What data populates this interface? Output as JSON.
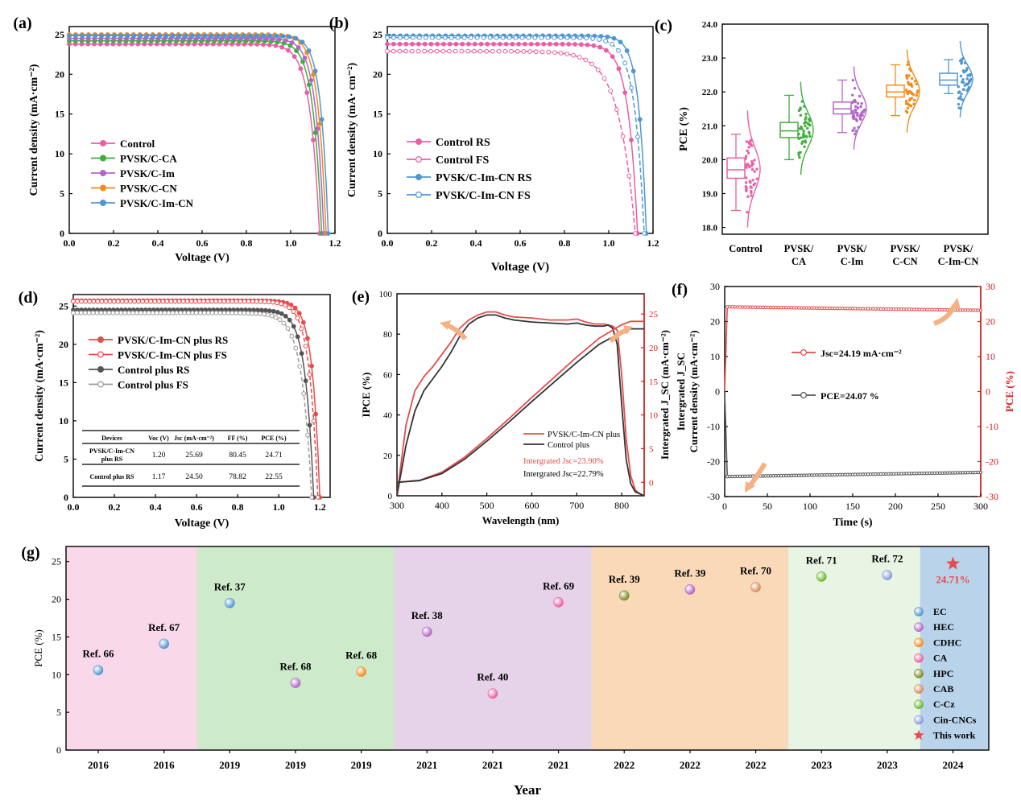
{
  "figure": {
    "panel_letters": [
      "(a)",
      "(b)",
      "(c)",
      "(d)",
      "(e)",
      "(f)",
      "(g)"
    ]
  },
  "colors": {
    "pink": "#ea5fa4",
    "green": "#3fae3f",
    "purple": "#b266c8",
    "orange": "#f08c1e",
    "blue": "#4f97d3",
    "red": "#e64c4c",
    "grey": "#555555",
    "light_grey": "#9a9a9a"
  },
  "chart_data": [
    {
      "id": "a",
      "type": "line",
      "xlabel": "Voltage (V)",
      "ylabel": "Current density (mA·cm⁻²)",
      "xlim": [
        0,
        1.2
      ],
      "ylim": [
        0,
        26
      ],
      "xticks": [
        "0.0",
        "0.2",
        "0.4",
        "0.6",
        "0.8",
        "1.0",
        "1.2"
      ],
      "yticks": [
        "0",
        "5",
        "10",
        "15",
        "20",
        "25"
      ],
      "series": [
        {
          "name": "Control",
          "color": "pink",
          "jsc": 23.8,
          "voc": 1.13,
          "ff": 0.78
        },
        {
          "name": "PVSK/C-CA",
          "color": "green",
          "jsc": 24.2,
          "voc": 1.14,
          "ff": 0.79
        },
        {
          "name": "PVSK/C-Im",
          "color": "purple",
          "jsc": 24.5,
          "voc": 1.15,
          "ff": 0.795
        },
        {
          "name": "PVSK/C-CN",
          "color": "orange",
          "jsc": 25.0,
          "voc": 1.16,
          "ff": 0.8
        },
        {
          "name": "PVSK/C-Im-CN",
          "color": "blue",
          "jsc": 24.85,
          "voc": 1.17,
          "ff": 0.81
        }
      ]
    },
    {
      "id": "b",
      "type": "line",
      "xlabel": "Voltage (V)",
      "ylabel": "Current density (mA· cm⁻²)",
      "xlim": [
        0,
        1.2
      ],
      "ylim": [
        0,
        26
      ],
      "xticks": [
        "0.0",
        "0.2",
        "0.4",
        "0.6",
        "0.8",
        "1.0",
        "1.2"
      ],
      "yticks": [
        "0",
        "5",
        "10",
        "15",
        "20",
        "25"
      ],
      "series": [
        {
          "name": "Control RS",
          "color": "pink",
          "jsc": 23.8,
          "voc": 1.13,
          "ff": 0.78,
          "open": false
        },
        {
          "name": "Control FS",
          "color": "pink",
          "jsc": 22.9,
          "voc": 1.12,
          "ff": 0.73,
          "open": true
        },
        {
          "name": "PVSK/C-Im-CN RS",
          "color": "blue",
          "jsc": 24.85,
          "voc": 1.17,
          "ff": 0.81,
          "open": false
        },
        {
          "name": "PVSK/C-Im-CN FS",
          "color": "blue",
          "jsc": 24.6,
          "voc": 1.16,
          "ff": 0.78,
          "open": true
        }
      ]
    },
    {
      "id": "c",
      "type": "box",
      "ylabel": "PCE (%)",
      "ylim": [
        17.8,
        24.0
      ],
      "yticks": [
        "18.0",
        "19.0",
        "20.0",
        "21.0",
        "22.0",
        "23.0",
        "24.0"
      ],
      "categories": [
        [
          "Control"
        ],
        [
          "PVSK/",
          "CA"
        ],
        [
          "PVSK/",
          "C-Im"
        ],
        [
          "PVSK/",
          "C-CN"
        ],
        [
          "PVSK/",
          "C-Im-CN"
        ]
      ],
      "boxes": [
        {
          "color": "pink",
          "min": 18.5,
          "q1": 19.45,
          "median": 19.7,
          "q3": 20.05,
          "max": 20.75,
          "mean": 19.72,
          "lo": 18.0,
          "hi": 21.45
        },
        {
          "color": "green",
          "min": 20.0,
          "q1": 20.65,
          "median": 20.85,
          "q3": 21.1,
          "max": 21.9,
          "mean": 20.88,
          "lo": 19.55,
          "hi": 22.3
        },
        {
          "color": "purple",
          "min": 20.8,
          "q1": 21.35,
          "median": 21.5,
          "q3": 21.7,
          "max": 22.35,
          "mean": 21.52,
          "lo": 20.3,
          "hi": 22.75
        },
        {
          "color": "orange",
          "min": 21.3,
          "q1": 21.85,
          "median": 22.0,
          "q3": 22.2,
          "max": 22.8,
          "mean": 22.02,
          "lo": 20.8,
          "hi": 23.25
        },
        {
          "color": "blue",
          "min": 21.95,
          "q1": 22.2,
          "median": 22.35,
          "q3": 22.55,
          "max": 22.95,
          "mean": 22.38,
          "lo": 21.25,
          "hi": 23.5
        }
      ]
    },
    {
      "id": "d",
      "type": "line",
      "xlabel": "Voltage (V)",
      "ylabel": "Current density (mA·cm⁻²)",
      "xlim": [
        0,
        1.25
      ],
      "ylim": [
        0,
        26.5
      ],
      "xticks": [
        "0.0",
        "0.2",
        "0.4",
        "0.6",
        "0.8",
        "1.0",
        "1.2"
      ],
      "yticks": [
        "0",
        "5",
        "10",
        "15",
        "20",
        "25"
      ],
      "series": [
        {
          "name": "PVSK/C-Im-CN plus RS",
          "color": "red",
          "jsc": 25.69,
          "voc": 1.2,
          "ff": 0.8045,
          "open": false
        },
        {
          "name": "PVSK/C-Im-CN plus FS",
          "color": "red",
          "jsc": 25.6,
          "voc": 1.19,
          "ff": 0.79,
          "open": true
        },
        {
          "name": "Control plus RS",
          "color": "grey",
          "jsc": 24.5,
          "voc": 1.17,
          "ff": 0.7882,
          "open": false
        },
        {
          "name": "Control plus FS",
          "color": "light_grey",
          "jsc": 24.1,
          "voc": 1.16,
          "ff": 0.77,
          "open": true
        }
      ],
      "table": {
        "headers": [
          "Devices",
          "Voc (V)",
          "Jsc (mA·cm⁻²)",
          "FF (%)",
          "PCE (%)"
        ],
        "rows": [
          [
            [
              "PVSK/C-Im-CN",
              "plus RS"
            ],
            "1.20",
            "25.69",
            "80.45",
            "24.71"
          ],
          [
            [
              "Control plus RS"
            ],
            "1.17",
            "24.50",
            "78.82",
            "22.55"
          ]
        ]
      }
    },
    {
      "id": "e",
      "type": "line",
      "xlabel": "Wavelength (nm)",
      "ylabel": "IPCE (%)",
      "ylabel_right": "Intergrated J_SC (mA·cm⁻²)",
      "xlim": [
        300,
        850
      ],
      "ylim": [
        0,
        100
      ],
      "ylim_right": [
        -2,
        28
      ],
      "xticks": [
        "300",
        "400",
        "500",
        "600",
        "700",
        "800"
      ],
      "yticks": [
        "0",
        "20",
        "40",
        "60",
        "80",
        "100"
      ],
      "yticks_right": [
        "0",
        "5",
        "10",
        "15",
        "20",
        "25"
      ],
      "ipce": [
        {
          "name": "PVSK/C-Im-CN plus",
          "color": "red",
          "x": [
            300,
            320,
            340,
            360,
            380,
            400,
            420,
            440,
            460,
            480,
            500,
            520,
            540,
            560,
            600,
            640,
            680,
            700,
            720,
            740,
            760,
            780,
            790,
            800,
            810,
            820,
            830,
            840,
            850
          ],
          "y": [
            0,
            35,
            52,
            59,
            64,
            70,
            76,
            83,
            87,
            89.5,
            91,
            91,
            89.5,
            88.5,
            88,
            87,
            87,
            87.5,
            86,
            85,
            85,
            84,
            82,
            60,
            28,
            10,
            3,
            1,
            0
          ]
        },
        {
          "name": "Control plus",
          "color": "dark",
          "x": [
            300,
            320,
            340,
            360,
            380,
            400,
            420,
            440,
            460,
            480,
            500,
            520,
            540,
            560,
            600,
            640,
            680,
            700,
            720,
            740,
            760,
            770,
            780,
            790,
            800,
            810,
            820,
            830,
            840,
            850
          ],
          "y": [
            0,
            25,
            42,
            52,
            58,
            64,
            71,
            79,
            85,
            88,
            89.5,
            89.5,
            88,
            87,
            86,
            85.5,
            85,
            85.5,
            84.5,
            84,
            84,
            84.5,
            83,
            75,
            45,
            18,
            6,
            2,
            1,
            0
          ]
        }
      ],
      "jsc_integ": [
        {
          "color": "red",
          "x": [
            300,
            350,
            400,
            450,
            500,
            550,
            600,
            650,
            700,
            750,
            800,
            820,
            850
          ],
          "y": [
            0,
            0.3,
            1.5,
            3.7,
            6.5,
            9.5,
            12.6,
            15.6,
            18.6,
            21.4,
            23.4,
            23.9,
            23.9
          ]
        },
        {
          "color": "dark",
          "x": [
            300,
            350,
            400,
            450,
            500,
            550,
            600,
            650,
            700,
            750,
            800,
            820,
            850
          ],
          "y": [
            0,
            0.25,
            1.3,
            3.4,
            6.1,
            9.0,
            12.0,
            14.9,
            17.8,
            20.5,
            22.3,
            22.79,
            22.79
          ]
        }
      ],
      "legend": [
        "PVSK/C-Im-CN plus",
        "Control plus"
      ],
      "annotations": [
        "Intergrated Jsc=23.90%",
        "Intergrated Jsc=22.79%"
      ]
    },
    {
      "id": "f",
      "type": "line",
      "xlabel": "Time (s)",
      "ylabel": "Intergrated J_SC Current density (mA·cm⁻²)",
      "ylabel_right": "PCE (%)",
      "xlim": [
        0,
        300
      ],
      "ylim": [
        -30,
        30
      ],
      "xticks": [
        "0",
        "50",
        "100",
        "150",
        "200",
        "250",
        "300"
      ],
      "yticks": [
        "-30",
        "-20",
        "-10",
        "0",
        "10",
        "20",
        "30"
      ],
      "series": [
        {
          "name": "Jsc=24.19 mA·cm⁻²",
          "color": "red",
          "start": 24.2,
          "end": 23.2
        },
        {
          "name": "PCE=24.07 %",
          "color": "grey",
          "start": -24.3,
          "end": -23.1
        }
      ]
    },
    {
      "id": "g",
      "type": "scatter",
      "xlabel": "Year",
      "ylabel": "PCE (%)",
      "ylim": [
        0,
        27
      ],
      "yticks": [
        "0",
        "5",
        "10",
        "15",
        "20",
        "25"
      ],
      "xticks": [
        "2016",
        "2016",
        "2019",
        "2019",
        "2019",
        "2021",
        "2021",
        "2021",
        "2022",
        "2022",
        "2022",
        "2023",
        "2023",
        "2024"
      ],
      "bands": [
        {
          "from": 0,
          "to": 2,
          "color": "#f9d8ea"
        },
        {
          "from": 2,
          "to": 5,
          "color": "#cdeacb"
        },
        {
          "from": 5,
          "to": 8,
          "color": "#e6d3ea"
        },
        {
          "from": 8,
          "to": 11,
          "color": "#f9d9b8"
        },
        {
          "from": 11,
          "to": 13,
          "color": "#e8f4e4"
        },
        {
          "from": 13,
          "to": 14,
          "color": "#b9d4ea"
        }
      ],
      "points": [
        {
          "label": "Ref. 66",
          "value": 10.6,
          "color": "#4f97d3"
        },
        {
          "label": "Ref. 67",
          "value": 14.1,
          "color": "#4f97d3"
        },
        {
          "label": "Ref. 37",
          "value": 19.5,
          "color": "#4f97d3"
        },
        {
          "label": "Ref. 68",
          "value": 8.9,
          "color": "#b266c8"
        },
        {
          "label": "Ref. 68",
          "value": 10.4,
          "color": "#f08c1e"
        },
        {
          "label": "Ref. 38",
          "value": 15.7,
          "color": "#b266c8"
        },
        {
          "label": "Ref. 40",
          "value": 7.5,
          "color": "#ea5fa4"
        },
        {
          "label": "Ref. 69",
          "value": 19.6,
          "color": "#ea5fa4"
        },
        {
          "label": "Ref. 39",
          "value": 20.5,
          "color": "#7a8a1a"
        },
        {
          "label": "Ref. 39",
          "value": 21.3,
          "color": "#b266c8"
        },
        {
          "label": "Ref. 70",
          "value": 21.6,
          "color": "#d98a5a"
        },
        {
          "label": "Ref. 71",
          "value": 23.0,
          "color": "#6ab82a"
        },
        {
          "label": "Ref. 72",
          "value": 23.2,
          "color": "#8a9ad8"
        },
        {
          "label": "24.71%",
          "value": 24.71,
          "color": "#e64c4c",
          "star": true
        }
      ],
      "legend": [
        {
          "name": "EC",
          "color": "#4f97d3"
        },
        {
          "name": "HEC",
          "color": "#b266c8"
        },
        {
          "name": "CDHC",
          "color": "#f08c1e"
        },
        {
          "name": "CA",
          "color": "#ea5fa4"
        },
        {
          "name": "HPC",
          "color": "#7a8a1a"
        },
        {
          "name": "CAB",
          "color": "#d98a5a"
        },
        {
          "name": "C-Cz",
          "color": "#6ab82a"
        },
        {
          "name": "Cin-CNCs",
          "color": "#8a9ad8"
        },
        {
          "name": "This work",
          "color": "#e64c4c",
          "star": true
        }
      ]
    }
  ]
}
